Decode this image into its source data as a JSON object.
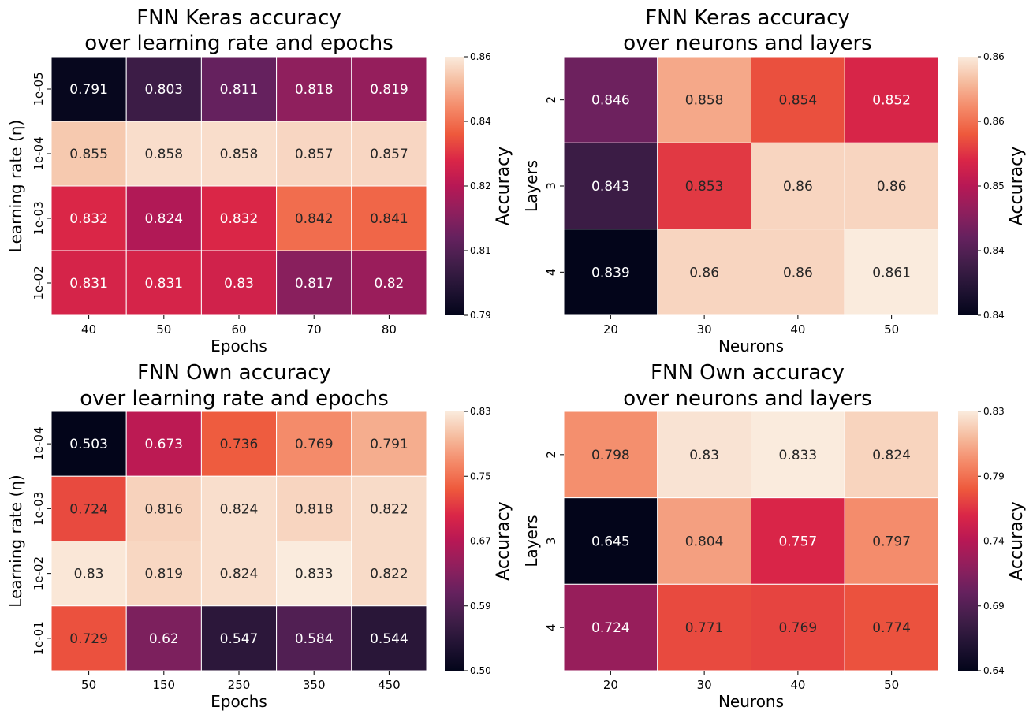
{
  "chart_data": [
    {
      "type": "heatmap",
      "title": [
        "FNN Keras accuracy",
        "over learning rate and epochs"
      ],
      "xlabel": "Epochs",
      "ylabel": "Learning rate (η)",
      "x_categories": [
        "40",
        "50",
        "60",
        "70",
        "80"
      ],
      "y_categories": [
        "1e-05",
        "1e-04",
        "1e-03",
        "1e-02"
      ],
      "values": [
        [
          0.791,
          0.803,
          0.811,
          0.818,
          0.819
        ],
        [
          0.855,
          0.858,
          0.858,
          0.857,
          0.857
        ],
        [
          0.832,
          0.824,
          0.832,
          0.842,
          0.841
        ],
        [
          0.831,
          0.831,
          0.83,
          0.817,
          0.82
        ]
      ],
      "annotations": [
        [
          "0.791",
          "0.803",
          "0.811",
          "0.818",
          "0.819"
        ],
        [
          "0.855",
          "0.858",
          "0.858",
          "0.857",
          "0.857"
        ],
        [
          "0.832",
          "0.824",
          "0.832",
          "0.842",
          "0.841"
        ],
        [
          "0.831",
          "0.831",
          "0.83",
          "0.817",
          "0.82"
        ]
      ],
      "colorbar": {
        "label": "Accuracy",
        "vmin": 0.79,
        "vmax": 0.86,
        "ticks": [
          "0.79",
          "0.81",
          "0.82",
          "0.84",
          "0.86"
        ]
      },
      "colormap": "rocket"
    },
    {
      "type": "heatmap",
      "title": [
        "FNN Keras accuracy",
        "over neurons and layers"
      ],
      "xlabel": "Neurons",
      "ylabel": "Layers",
      "x_categories": [
        "20",
        "30",
        "40",
        "50"
      ],
      "y_categories": [
        "2",
        "3",
        "4"
      ],
      "values": [
        [
          0.846,
          0.858,
          0.854,
          0.852
        ],
        [
          0.843,
          0.853,
          0.86,
          0.86
        ],
        [
          0.839,
          0.86,
          0.86,
          0.861
        ]
      ],
      "annotations": [
        [
          "0.846",
          "0.858",
          "0.854",
          "0.852"
        ],
        [
          "0.843",
          "0.853",
          "0.86",
          "0.86"
        ],
        [
          "0.839",
          "0.86",
          "0.86",
          "0.861"
        ]
      ],
      "colorbar": {
        "label": "Accuracy",
        "vmin": 0.839,
        "vmax": 0.861,
        "ticks": [
          "0.84",
          "0.84",
          "0.85",
          "0.86",
          "0.86"
        ]
      },
      "colormap": "rocket"
    },
    {
      "type": "heatmap",
      "title": [
        "FNN Own accuracy",
        "over learning rate and epochs"
      ],
      "xlabel": "Epochs",
      "ylabel": "Learning rate (η)",
      "x_categories": [
        "50",
        "150",
        "250",
        "350",
        "450"
      ],
      "y_categories": [
        "1e-04",
        "1e-03",
        "1e-02",
        "1e-01"
      ],
      "values": [
        [
          0.503,
          0.673,
          0.736,
          0.769,
          0.791
        ],
        [
          0.724,
          0.816,
          0.824,
          0.818,
          0.822
        ],
        [
          0.83,
          0.819,
          0.824,
          0.833,
          0.822
        ],
        [
          0.729,
          0.62,
          0.547,
          0.584,
          0.544
        ]
      ],
      "annotations": [
        [
          "0.503",
          "0.673",
          "0.736",
          "0.769",
          "0.791"
        ],
        [
          "0.724",
          "0.816",
          "0.824",
          "0.818",
          "0.822"
        ],
        [
          "0.83",
          "0.819",
          "0.824",
          "0.833",
          "0.822"
        ],
        [
          "0.729",
          "0.62",
          "0.547",
          "0.584",
          "0.544"
        ]
      ],
      "colorbar": {
        "label": "Accuracy",
        "vmin": 0.503,
        "vmax": 0.833,
        "ticks": [
          "0.50",
          "0.59",
          "0.67",
          "0.75",
          "0.83"
        ]
      },
      "colormap": "rocket"
    },
    {
      "type": "heatmap",
      "title": [
        "FNN Own accuracy",
        "over neurons and layers"
      ],
      "xlabel": "Neurons",
      "ylabel": "Layers",
      "x_categories": [
        "20",
        "30",
        "40",
        "50"
      ],
      "y_categories": [
        "2",
        "3",
        "4"
      ],
      "values": [
        [
          0.798,
          0.83,
          0.833,
          0.824
        ],
        [
          0.645,
          0.804,
          0.757,
          0.797
        ],
        [
          0.724,
          0.771,
          0.769,
          0.774
        ]
      ],
      "annotations": [
        [
          "0.798",
          "0.83",
          "0.833",
          "0.824"
        ],
        [
          "0.645",
          "0.804",
          "0.757",
          "0.797"
        ],
        [
          "0.724",
          "0.771",
          "0.769",
          "0.774"
        ]
      ],
      "colorbar": {
        "label": "Accuracy",
        "vmin": 0.645,
        "vmax": 0.833,
        "ticks": [
          "0.64",
          "0.69",
          "0.74",
          "0.79",
          "0.83"
        ]
      },
      "colormap": "rocket"
    }
  ]
}
